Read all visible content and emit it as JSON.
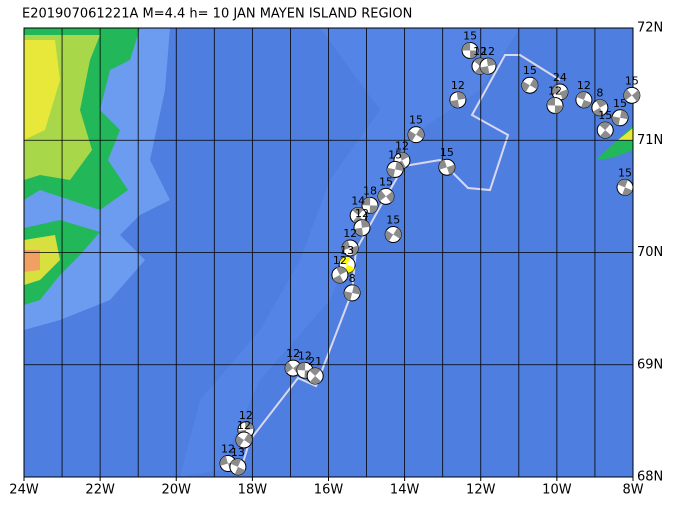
{
  "title": "E201907061221A M=4.4 h= 10 JAN MAYEN ISLAND REGION",
  "xlim": [
    -24,
    -8
  ],
  "ylim": [
    68,
    72
  ],
  "xticks": [
    {
      "value": -24,
      "label": "24W"
    },
    {
      "value": -22,
      "label": "22W"
    },
    {
      "value": -20,
      "label": "20W"
    },
    {
      "value": -18,
      "label": "18W"
    },
    {
      "value": -16,
      "label": "16W"
    },
    {
      "value": -14,
      "label": "14W"
    },
    {
      "value": -12,
      "label": "12W"
    },
    {
      "value": -10,
      "label": "10W"
    },
    {
      "value": -8,
      "label": "8W"
    }
  ],
  "yticks": [
    {
      "value": 72,
      "label": "72N"
    },
    {
      "value": 71,
      "label": "71N"
    },
    {
      "value": 70,
      "label": "70N"
    },
    {
      "value": 69,
      "label": "69N"
    },
    {
      "value": 68,
      "label": "68N"
    }
  ],
  "ball_color": "#8c8c8c",
  "events": [
    {
      "lon": -12.28,
      "lat": 71.8,
      "depth": 15
    },
    {
      "lon": -12.02,
      "lat": 71.66,
      "depth": 12
    },
    {
      "lon": -11.81,
      "lat": 71.66,
      "depth": 12
    },
    {
      "lon": -10.71,
      "lat": 71.49,
      "depth": 15
    },
    {
      "lon": -9.92,
      "lat": 71.43,
      "depth": 24
    },
    {
      "lon": -9.29,
      "lat": 71.36,
      "depth": 12
    },
    {
      "lon": -8.87,
      "lat": 71.29,
      "depth": 8
    },
    {
      "lon": -8.34,
      "lat": 71.2,
      "depth": 15
    },
    {
      "lon": -8.03,
      "lat": 71.4,
      "depth": 15
    },
    {
      "lon": -10.05,
      "lat": 71.31,
      "depth": 12
    },
    {
      "lon": -8.73,
      "lat": 71.09,
      "depth": 15
    },
    {
      "lon": -12.6,
      "lat": 71.36,
      "depth": 12
    },
    {
      "lon": -13.7,
      "lat": 71.05,
      "depth": 15
    },
    {
      "lon": -12.89,
      "lat": 70.76,
      "depth": 15
    },
    {
      "lon": -8.21,
      "lat": 70.58,
      "depth": 15
    },
    {
      "lon": -14.07,
      "lat": 70.82,
      "depth": 12
    },
    {
      "lon": -14.25,
      "lat": 70.74,
      "depth": 15
    },
    {
      "lon": -14.49,
      "lat": 70.5,
      "depth": 15
    },
    {
      "lon": -14.91,
      "lat": 70.42,
      "depth": 18
    },
    {
      "lon": -15.22,
      "lat": 70.33,
      "depth": 14
    },
    {
      "lon": -15.12,
      "lat": 70.22,
      "depth": 12
    },
    {
      "lon": -14.3,
      "lat": 70.16,
      "depth": 15
    },
    {
      "lon": -15.43,
      "lat": 70.04,
      "depth": 12
    },
    {
      "lon": -15.51,
      "lat": 69.89,
      "depth": 13,
      "color": "#ffff00"
    },
    {
      "lon": -15.7,
      "lat": 69.8,
      "depth": 12
    },
    {
      "lon": -15.38,
      "lat": 69.64,
      "depth": 8
    },
    {
      "lon": -16.93,
      "lat": 68.97,
      "depth": 12
    },
    {
      "lon": -16.62,
      "lat": 68.95,
      "depth": 12
    },
    {
      "lon": -16.35,
      "lat": 68.9,
      "depth": 21
    },
    {
      "lon": -18.17,
      "lat": 68.42,
      "depth": 12
    },
    {
      "lon": -18.22,
      "lat": 68.33,
      "depth": 12
    },
    {
      "lon": -18.64,
      "lat": 68.12,
      "depth": 12
    },
    {
      "lon": -18.38,
      "lat": 68.09,
      "depth": 13
    }
  ]
}
